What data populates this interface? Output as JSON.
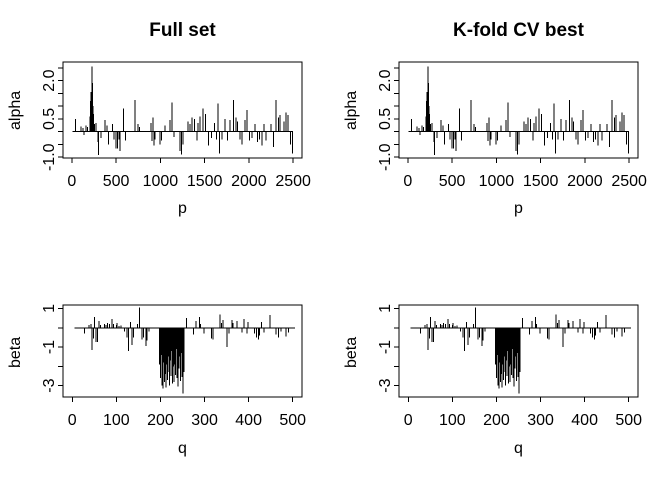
{
  "figure": {
    "background": "#ffffff",
    "foreground": "#000000"
  },
  "chart_data": {
    "type": "bar",
    "subtype": "spike-plot (R type='h'), 2x2 panel grid",
    "note": "Left and right columns display identical data; rows differ (alpha coefficients vs p, beta coefficients vs q).",
    "legend": "none",
    "grid": "off",
    "columns": [
      {
        "title": "Full set"
      },
      {
        "title": "K-fold CV best"
      }
    ],
    "rows": [
      {
        "ylabel": "alpha",
        "xlabel": "p",
        "xlim": [
          -100,
          2600
        ],
        "ylim": [
          -1.03,
          2.73
        ],
        "xticks": [
          0,
          500,
          1000,
          1500,
          2000,
          2500
        ],
        "xtick_labels": [
          "0",
          "500",
          "1000",
          "1500",
          "2000",
          "2500"
        ],
        "yticks": [
          -1,
          -0.5,
          0,
          0.5,
          1,
          1.5,
          2,
          2.5
        ],
        "ytick_labels": [
          "-1.0",
          "",
          "",
          "0.5",
          "",
          "",
          "2.0",
          ""
        ],
        "baseline": 0,
        "baseline_span": [
          9,
          2500
        ],
        "points": [
          [
            42,
            0.5
          ],
          [
            105,
            0.2
          ],
          [
            124,
            0.15
          ],
          [
            139,
            -0.12
          ],
          [
            158,
            0.25
          ],
          [
            177,
            0.18
          ],
          [
            204,
            0.6
          ],
          [
            212,
            1.2
          ],
          [
            218,
            1.55
          ],
          [
            226,
            2.55
          ],
          [
            233,
            1.9
          ],
          [
            240,
            1.0
          ],
          [
            247,
            0.7
          ],
          [
            257,
            0.3
          ],
          [
            274,
            0.35
          ],
          [
            293,
            -0.4
          ],
          [
            300,
            -0.92
          ],
          [
            332,
            -0.25
          ],
          [
            375,
            0.45
          ],
          [
            397,
            0.25
          ],
          [
            412,
            -0.5
          ],
          [
            457,
            0.3
          ],
          [
            476,
            -0.3
          ],
          [
            499,
            -0.65
          ],
          [
            514,
            -0.65
          ],
          [
            530,
            -0.3
          ],
          [
            544,
            -0.75
          ],
          [
            581,
            0.9
          ],
          [
            608,
            -0.35
          ],
          [
            713,
            1.25
          ],
          [
            750,
            0.3
          ],
          [
            766,
            0.18
          ],
          [
            893,
            0.35
          ],
          [
            906,
            -0.37
          ],
          [
            915,
            0.55
          ],
          [
            928,
            -0.55
          ],
          [
            940,
            -0.3
          ],
          [
            994,
            -0.5
          ],
          [
            1013,
            -0.35
          ],
          [
            1054,
            0.25
          ],
          [
            1107,
            0.45
          ],
          [
            1133,
            1.15
          ],
          [
            1155,
            -0.2
          ],
          [
            1220,
            -0.75
          ],
          [
            1239,
            -0.9
          ],
          [
            1257,
            -0.5
          ],
          [
            1313,
            0.4
          ],
          [
            1332,
            0.3
          ],
          [
            1358,
            0.55
          ],
          [
            1388,
            0.5
          ],
          [
            1411,
            -0.35
          ],
          [
            1426,
            0.35
          ],
          [
            1448,
            0.6
          ],
          [
            1482,
            0.9
          ],
          [
            1512,
            0.7
          ],
          [
            1546,
            -0.55
          ],
          [
            1575,
            -0.25
          ],
          [
            1610,
            0.35
          ],
          [
            1636,
            -0.3
          ],
          [
            1651,
            1.1
          ],
          [
            1667,
            -0.85
          ],
          [
            1697,
            -0.3
          ],
          [
            1731,
            0.5
          ],
          [
            1757,
            -0.35
          ],
          [
            1788,
            0.45
          ],
          [
            1825,
            1.25
          ],
          [
            1856,
            0.55
          ],
          [
            1871,
            0.4
          ],
          [
            1901,
            -0.3
          ],
          [
            1920,
            -0.5
          ],
          [
            1957,
            0.45
          ],
          [
            1976,
            0.85
          ],
          [
            2006,
            -0.35
          ],
          [
            2033,
            -0.25
          ],
          [
            2071,
            0.3
          ],
          [
            2097,
            -0.4
          ],
          [
            2120,
            -0.3
          ],
          [
            2146,
            -0.55
          ],
          [
            2172,
            0.3
          ],
          [
            2195,
            -0.35
          ],
          [
            2248,
            0.3
          ],
          [
            2278,
            -0.6
          ],
          [
            2308,
            1.25
          ],
          [
            2334,
            0.55
          ],
          [
            2353,
            0.65
          ],
          [
            2399,
            0.4
          ],
          [
            2417,
            0.75
          ],
          [
            2440,
            0.65
          ],
          [
            2470,
            -0.5
          ],
          [
            2490,
            -0.85
          ]
        ]
      },
      {
        "ylabel": "beta",
        "xlabel": "q",
        "xlim": [
          -21,
          521
        ],
        "ylim": [
          -3.59,
          1.18
        ],
        "xticks": [
          0,
          100,
          200,
          300,
          400,
          500
        ],
        "xtick_labels": [
          "0",
          "100",
          "200",
          "300",
          "400",
          "500"
        ],
        "yticks": [
          -3,
          -2,
          -1,
          0,
          1
        ],
        "ytick_labels": [
          "-3",
          "",
          "-1",
          "",
          "1"
        ],
        "baseline": 0,
        "baseline_span": [
          5,
          505
        ],
        "points": [
          [
            28,
            -0.3
          ],
          [
            38,
            0.15
          ],
          [
            43,
            0.2
          ],
          [
            45,
            -1.15
          ],
          [
            48,
            -0.55
          ],
          [
            51,
            0.55
          ],
          [
            54,
            -0.75
          ],
          [
            57,
            -0.75
          ],
          [
            61,
            0.35
          ],
          [
            64,
            0.15
          ],
          [
            73,
            0.2
          ],
          [
            76,
            0.15
          ],
          [
            80,
            0.25
          ],
          [
            84,
            0.2
          ],
          [
            90,
            0.45
          ],
          [
            93,
            0.2
          ],
          [
            100,
            0.15
          ],
          [
            102,
            0.25
          ],
          [
            106,
            0.1
          ],
          [
            110,
            0.12
          ],
          [
            118,
            -0.2
          ],
          [
            124,
            -0.5
          ],
          [
            128,
            -1.2
          ],
          [
            132,
            0.3
          ],
          [
            136,
            -0.9
          ],
          [
            139,
            -0.5
          ],
          [
            148,
            0.2
          ],
          [
            153,
            1.05
          ],
          [
            158,
            -0.6
          ],
          [
            161,
            -0.5
          ],
          [
            167,
            -0.95
          ],
          [
            170,
            -0.65
          ],
          [
            174,
            -0.2
          ],
          [
            198,
            -1.9
          ],
          [
            200,
            -2.6
          ],
          [
            201,
            -1.4
          ],
          [
            203,
            -3.0
          ],
          [
            204,
            -2.2
          ],
          [
            206,
            -3.15
          ],
          [
            207,
            -1.8
          ],
          [
            209,
            -2.8
          ],
          [
            210,
            -1.3
          ],
          [
            212,
            -2.4
          ],
          [
            213,
            -3.1
          ],
          [
            215,
            -1.9
          ],
          [
            216,
            -2.7
          ],
          [
            218,
            -1.5
          ],
          [
            219,
            -2.3
          ],
          [
            221,
            -3.0
          ],
          [
            222,
            -1.7
          ],
          [
            224,
            -2.5
          ],
          [
            225,
            -1.2
          ],
          [
            227,
            -2.9
          ],
          [
            228,
            -2.0
          ],
          [
            230,
            -1.6
          ],
          [
            231,
            -2.8
          ],
          [
            233,
            -1.9
          ],
          [
            234,
            -2.45
          ],
          [
            236,
            -1.1
          ],
          [
            237,
            -2.6
          ],
          [
            239,
            -1.8
          ],
          [
            240,
            -3.05
          ],
          [
            242,
            -2.1
          ],
          [
            243,
            -1.5
          ],
          [
            245,
            -2.75
          ],
          [
            246,
            -2.0
          ],
          [
            248,
            -1.3
          ],
          [
            249,
            -2.55
          ],
          [
            251,
            -3.42
          ],
          [
            252,
            -1.9
          ],
          [
            253,
            -2.3
          ],
          [
            259,
            0.5
          ],
          [
            275,
            -0.35
          ],
          [
            281,
            0.35
          ],
          [
            288,
            0.55
          ],
          [
            291,
            0.2
          ],
          [
            299,
            -0.3
          ],
          [
            316,
            -0.55
          ],
          [
            319,
            -0.6
          ],
          [
            335,
            0.7
          ],
          [
            339,
            0.25
          ],
          [
            342,
            0.4
          ],
          [
            351,
            -1.0
          ],
          [
            356,
            -0.3
          ],
          [
            362,
            0.4
          ],
          [
            365,
            0.25
          ],
          [
            374,
            0.35
          ],
          [
            385,
            -0.25
          ],
          [
            390,
            0.45
          ],
          [
            396,
            -0.3
          ],
          [
            399,
            0.3
          ],
          [
            413,
            -0.3
          ],
          [
            418,
            -0.5
          ],
          [
            422,
            -0.6
          ],
          [
            425,
            -0.4
          ],
          [
            429,
            0.3
          ],
          [
            435,
            -0.25
          ],
          [
            448,
            0.65
          ],
          [
            462,
            -0.35
          ],
          [
            468,
            -0.5
          ],
          [
            473,
            -0.2
          ],
          [
            485,
            -0.45
          ],
          [
            490,
            -0.25
          ]
        ]
      }
    ]
  }
}
